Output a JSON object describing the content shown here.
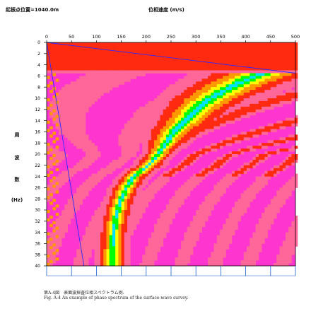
{
  "header": {
    "shot_point_label": "起振点位置=1040.0m",
    "x_axis_title": "位相速度 (m/s)"
  },
  "y_axis_title_chars": [
    "周",
    "波",
    "数",
    "(Hz)"
  ],
  "caption": {
    "jp": "第A-4図　表面波探査位相スペクトラム例.",
    "en": "Fig. A-4 An example of phase spectrum of the surface-wave survey."
  },
  "colors": {
    "background": "#ff35cf",
    "pink": "#ff6699",
    "red": "#ff2a10",
    "orange": "#ff9900",
    "yellow": "#ffff00",
    "green": "#00ff00",
    "cyan": "#00e0ff",
    "blue": "#2a2aff",
    "axis": "#000000",
    "tick": "#1a5fd0"
  },
  "chart_data": {
    "type": "heatmap",
    "title": "",
    "xlabel": "位相速度 (m/s)",
    "ylabel": "周波数 (Hz)",
    "xlim": [
      0,
      500
    ],
    "ylim": [
      0,
      40
    ],
    "x_ticks": [
      0,
      50,
      100,
      150,
      200,
      250,
      300,
      350,
      400,
      450,
      500
    ],
    "y_ticks": [
      0,
      2,
      4,
      6,
      8,
      10,
      12,
      14,
      16,
      18,
      20,
      22,
      24,
      26,
      28,
      30,
      32,
      34,
      36,
      38,
      40
    ],
    "x_ticks_at_top": true,
    "y_inverted": true,
    "dispersion_curve": {
      "frequency_hz": [
        6,
        8,
        10,
        12,
        14,
        16,
        18,
        20,
        22,
        24,
        26,
        28,
        30,
        32,
        34,
        36,
        38,
        40
      ],
      "phase_velocity_ms": [
        420,
        370,
        330,
        300,
        280,
        255,
        240,
        225,
        205,
        175,
        160,
        150,
        143,
        138,
        135,
        133,
        132,
        132
      ]
    },
    "limit_lines": [
      {
        "from": [
          0,
          0
        ],
        "to": [
          500,
          5.5
        ]
      },
      {
        "from": [
          0,
          0
        ],
        "to": [
          75,
          40
        ]
      }
    ]
  }
}
